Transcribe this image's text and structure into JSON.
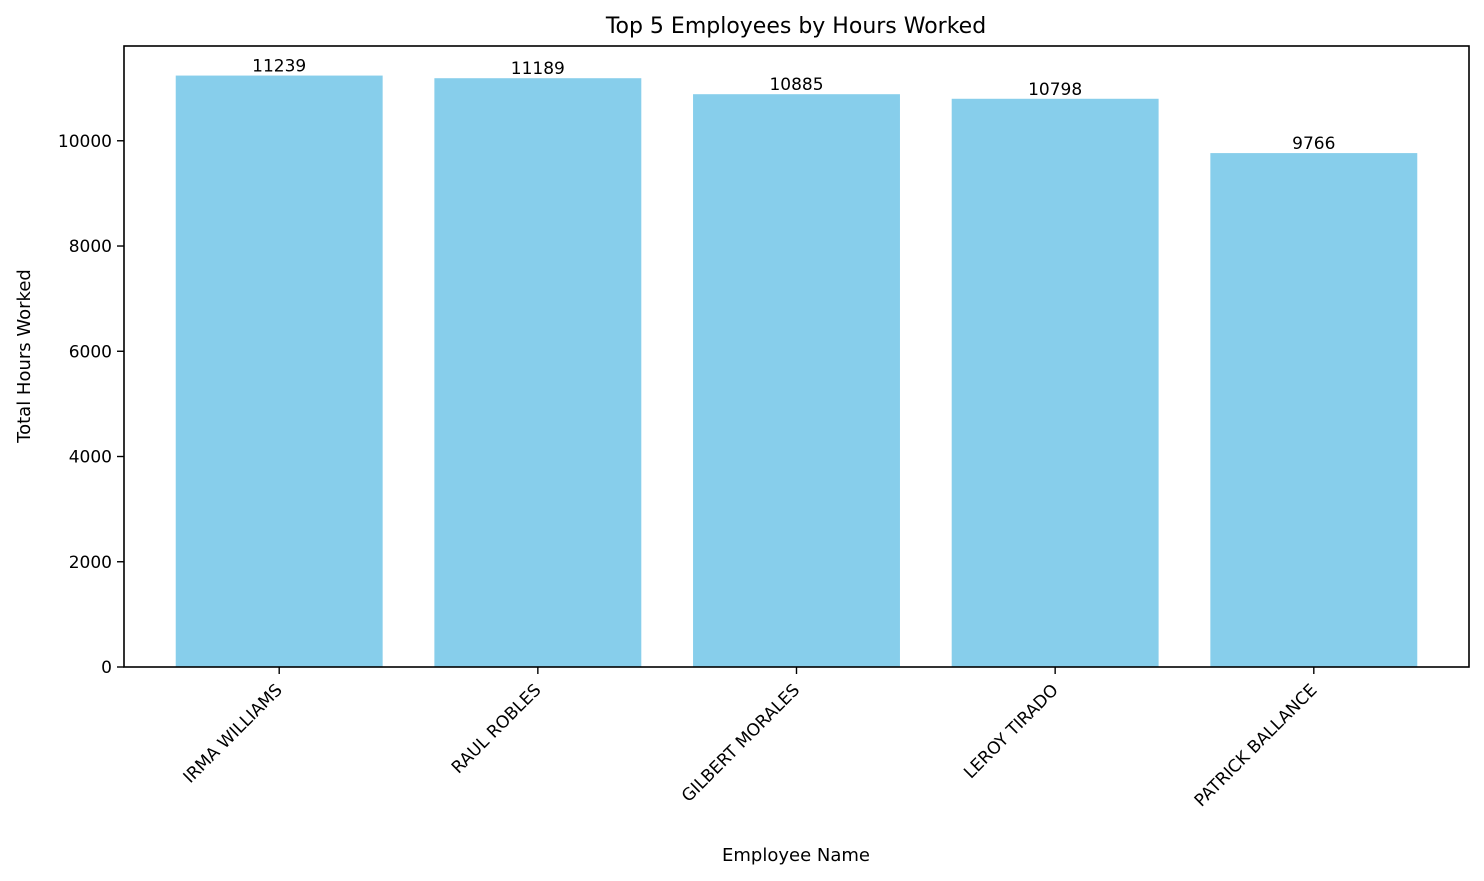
{
  "chart_data": {
    "type": "bar",
    "title": "Top 5 Employees by Hours Worked",
    "xlabel": "Employee Name",
    "ylabel": "Total Hours Worked",
    "categories": [
      "IRMA WILLIAMS",
      "RAUL ROBLES",
      "GILBERT MORALES",
      "LEROY TIRADO",
      "PATRICK BALLANCE"
    ],
    "values": [
      11239,
      11189,
      10885,
      10798,
      9766
    ],
    "ylim": [
      0,
      11801
    ],
    "yticks": [
      0,
      2000,
      4000,
      6000,
      8000,
      10000
    ],
    "bar_color": "#87CEEB",
    "grid": false,
    "data_labels": true
  }
}
